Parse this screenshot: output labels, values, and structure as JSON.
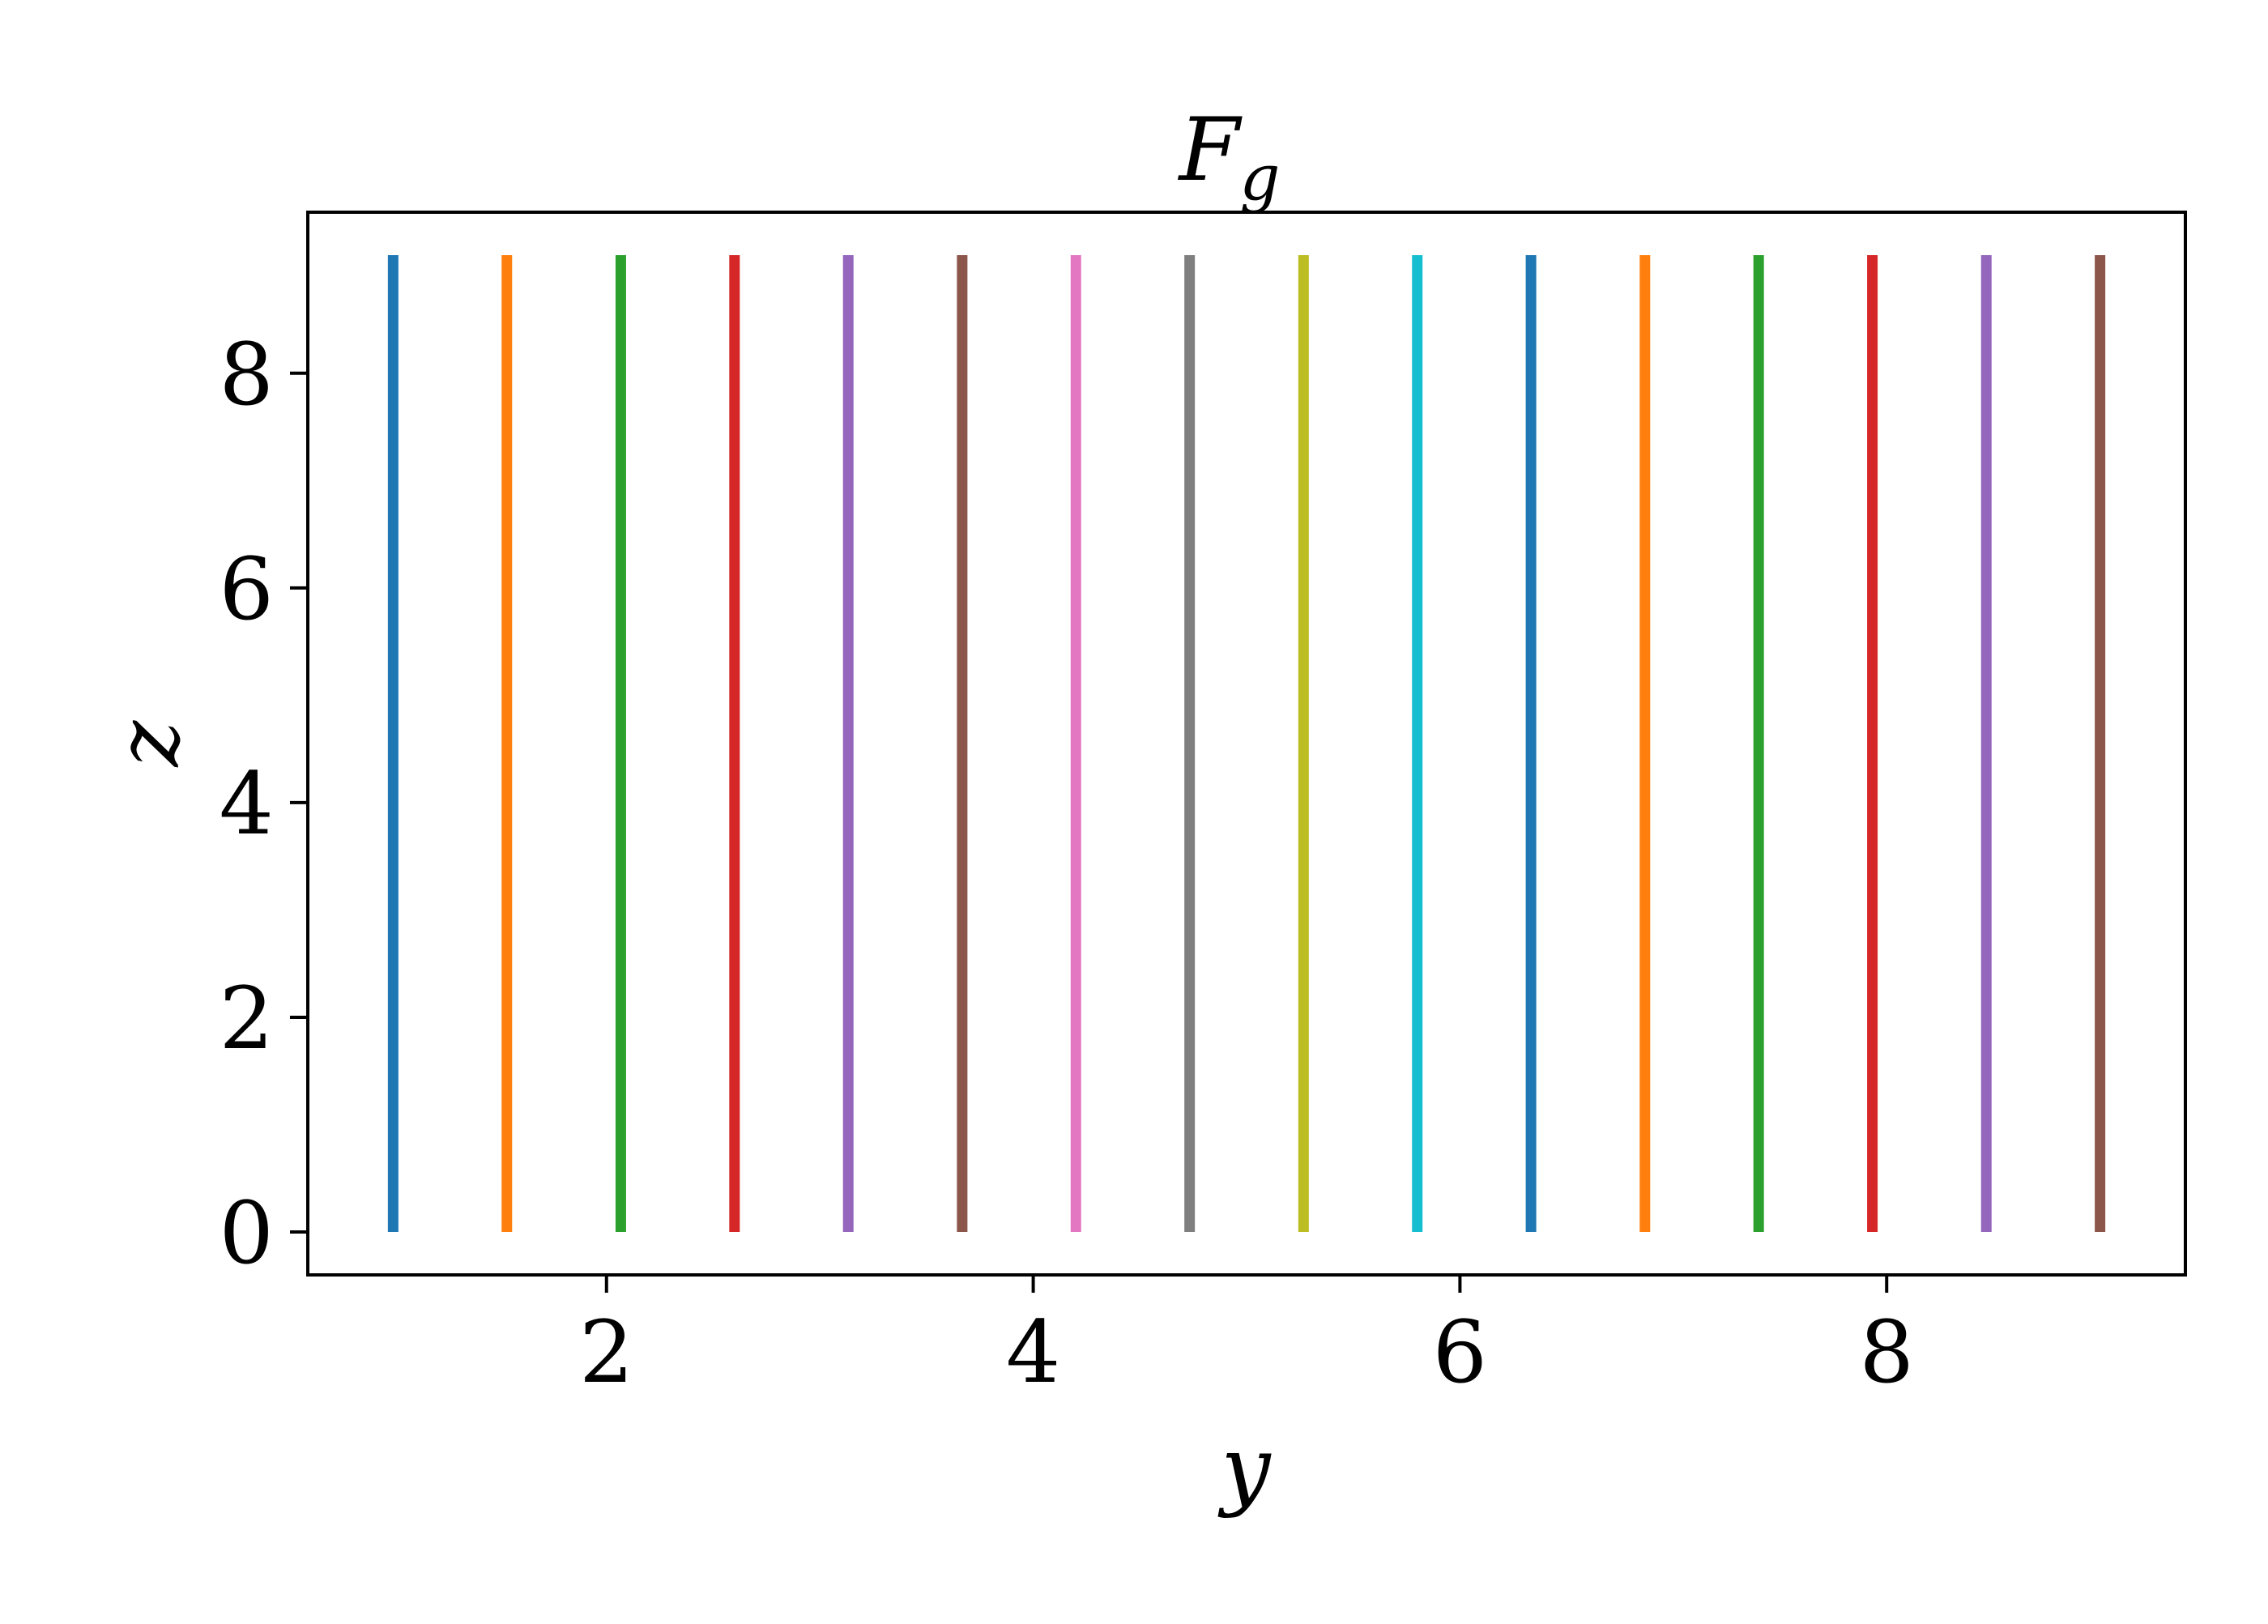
{
  "chart_data": {
    "type": "line",
    "title": "F",
    "title_subscript": "g",
    "xlabel": "y",
    "ylabel": "z",
    "xlim": [
      0.6,
      9.4
    ],
    "ylim": [
      -0.4,
      9.5
    ],
    "xticks": [
      2,
      4,
      6,
      8
    ],
    "yticks": [
      0,
      2,
      4,
      6,
      8
    ],
    "xtick_labels": [
      "2",
      "4",
      "6",
      "8"
    ],
    "ytick_labels": [
      "0",
      "2",
      "4",
      "6",
      "8"
    ],
    "grid": false,
    "legend": "none",
    "series": [
      {
        "x": [
          1.0,
          1.0
        ],
        "y": [
          0,
          9.1
        ],
        "color": "#1f77b4"
      },
      {
        "x": [
          1.533,
          1.533
        ],
        "y": [
          0,
          9.1
        ],
        "color": "#ff7f0e"
      },
      {
        "x": [
          2.067,
          2.067
        ],
        "y": [
          0,
          9.1
        ],
        "color": "#2ca02c"
      },
      {
        "x": [
          2.6,
          2.6
        ],
        "y": [
          0,
          9.1
        ],
        "color": "#d62728"
      },
      {
        "x": [
          3.133,
          3.133
        ],
        "y": [
          0,
          9.1
        ],
        "color": "#9467bd"
      },
      {
        "x": [
          3.667,
          3.667
        ],
        "y": [
          0,
          9.1
        ],
        "color": "#8c564b"
      },
      {
        "x": [
          4.2,
          4.2
        ],
        "y": [
          0,
          9.1
        ],
        "color": "#e377c2"
      },
      {
        "x": [
          4.733,
          4.733
        ],
        "y": [
          0,
          9.1
        ],
        "color": "#7f7f7f"
      },
      {
        "x": [
          5.267,
          5.267
        ],
        "y": [
          0,
          9.1
        ],
        "color": "#bcbd22"
      },
      {
        "x": [
          5.8,
          5.8
        ],
        "y": [
          0,
          9.1
        ],
        "color": "#17becf"
      },
      {
        "x": [
          6.333,
          6.333
        ],
        "y": [
          0,
          9.1
        ],
        "color": "#1f77b4"
      },
      {
        "x": [
          6.867,
          6.867
        ],
        "y": [
          0,
          9.1
        ],
        "color": "#ff7f0e"
      },
      {
        "x": [
          7.4,
          7.4
        ],
        "y": [
          0,
          9.1
        ],
        "color": "#2ca02c"
      },
      {
        "x": [
          7.933,
          7.933
        ],
        "y": [
          0,
          9.1
        ],
        "color": "#d62728"
      },
      {
        "x": [
          8.467,
          8.467
        ],
        "y": [
          0,
          9.1
        ],
        "color": "#9467bd"
      },
      {
        "x": [
          9.0,
          9.0
        ],
        "y": [
          0,
          9.1
        ],
        "color": "#8c564b"
      }
    ]
  }
}
